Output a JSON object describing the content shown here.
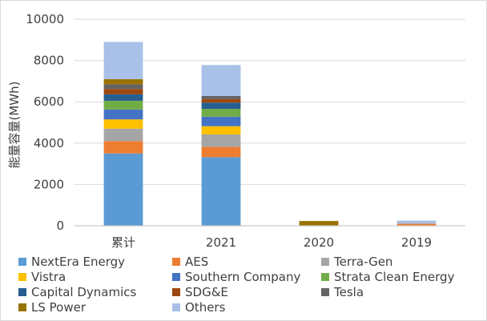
{
  "chart_data": {
    "type": "bar",
    "stacked": true,
    "title": "",
    "xlabel": "",
    "ylabel": "能量容量(MWh)",
    "ylim": [
      0,
      10000
    ],
    "yticks": [
      0,
      2000,
      4000,
      6000,
      8000,
      10000
    ],
    "ytick_labels": [
      "0",
      "2000",
      "4000",
      "6000",
      "8000",
      "10000"
    ],
    "grid": true,
    "legend_position": "bottom",
    "categories": [
      "累计",
      "2021",
      "2020",
      "2019"
    ],
    "series": [
      {
        "name": "NextEra Energy",
        "color": "#5b9bd5",
        "values": [
          3500,
          3320,
          0,
          0
        ]
      },
      {
        "name": "AES",
        "color": "#ed7d31",
        "values": [
          600,
          500,
          0,
          100
        ]
      },
      {
        "name": "Terra-Gen",
        "color": "#a5a5a5",
        "values": [
          600,
          600,
          0,
          0
        ]
      },
      {
        "name": "Vistra",
        "color": "#ffc000",
        "values": [
          450,
          400,
          0,
          0
        ]
      },
      {
        "name": "Southern Company",
        "color": "#4472c4",
        "values": [
          480,
          460,
          0,
          0
        ]
      },
      {
        "name": "Strata Clean Energy",
        "color": "#70ad47",
        "values": [
          420,
          380,
          0,
          0
        ]
      },
      {
        "name": "Capital Dynamics",
        "color": "#255e91",
        "values": [
          320,
          300,
          0,
          0
        ]
      },
      {
        "name": "SDG&E",
        "color": "#9e480e",
        "values": [
          250,
          170,
          0,
          0
        ]
      },
      {
        "name": "Tesla",
        "color": "#636363",
        "values": [
          230,
          150,
          0,
          0
        ]
      },
      {
        "name": "LS Power",
        "color": "#997300",
        "values": [
          250,
          0,
          230,
          0
        ]
      },
      {
        "name": "Others",
        "color": "#a9c1e8",
        "values": [
          1800,
          1500,
          0,
          150
        ]
      }
    ]
  }
}
